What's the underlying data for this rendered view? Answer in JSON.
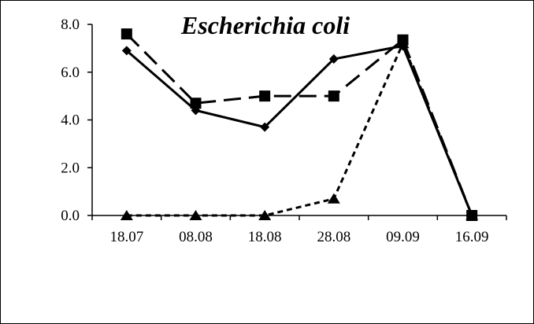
{
  "chart_data": {
    "type": "line",
    "title": "Escherichia coli",
    "xlabel": "",
    "ylabel": "",
    "categories": [
      "18.07",
      "08.08",
      "18.08",
      "28.08",
      "09.09",
      "16.09"
    ],
    "ylim": [
      0,
      8
    ],
    "yticks": [
      "0.0",
      "2.0",
      "4.0",
      "6.0",
      "8.0"
    ],
    "grid": false,
    "series": [
      {
        "marker": "diamond",
        "line_style": "solid",
        "color": "#000000",
        "values": [
          6.9,
          4.4,
          3.7,
          6.55,
          7.1,
          0.0
        ]
      },
      {
        "marker": "square",
        "line_style": "long-dash",
        "color": "#000000",
        "values": [
          7.6,
          4.7,
          5.0,
          5.0,
          7.35,
          0.0
        ]
      },
      {
        "marker": "triangle",
        "line_style": "short-dash",
        "color": "#000000",
        "values": [
          0.0,
          0.0,
          0.0,
          0.7,
          7.2,
          0.0
        ]
      }
    ]
  }
}
